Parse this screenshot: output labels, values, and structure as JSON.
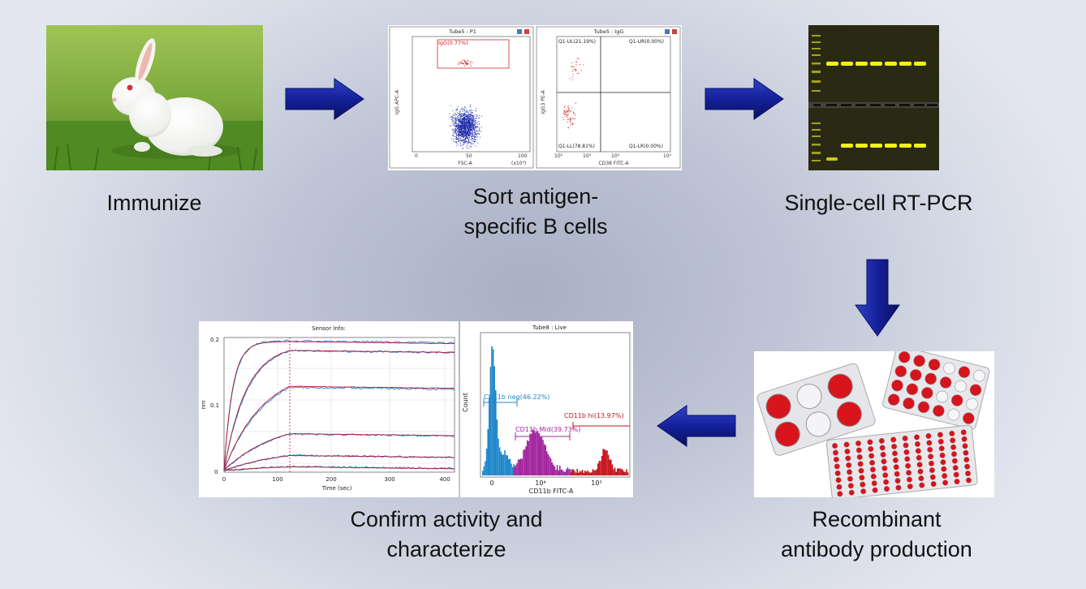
{
  "steps": {
    "immunize": "Immunize",
    "sort_line1": "Sort antigen-",
    "sort_line2": "specific B cells",
    "rtpcr": "Single-cell RT-PCR",
    "production_line1": "Recombinant",
    "production_line2": "antibody production",
    "confirm_line1": "Confirm activity and",
    "confirm_line2": "characterize"
  },
  "flow_plots": {
    "left": {
      "title": "Tube5 : P1",
      "gate_label": "IgG(0.77%)",
      "y_axis_label": "IgG APC-A",
      "x_axis_label": "FSC-A",
      "x_unit": "(x10³)",
      "x_ticks": [
        "0",
        "50",
        "100"
      ]
    },
    "right": {
      "title": "Tube5 : IgG",
      "y_axis_label": "IgG3 PE-A",
      "x_axis_label": "CD38 FITC-A",
      "q_ul": "Q1-UL(21.19%)",
      "q_ur": "Q1-UR(0.00%)",
      "q_ll": "Q1-LL(78.81%)",
      "q_lr": "Q1-LR(0.00%)",
      "x_ticks": [
        "10²",
        "10³",
        "10⁴",
        "10⁵"
      ]
    }
  },
  "sensor_plot": {
    "title": "Sensor Info:",
    "x_axis_label": "Time (sec)",
    "y_axis_label": "nm",
    "x_ticks": [
      "0",
      "100",
      "200",
      "300",
      "400"
    ],
    "y_ticks": [
      "0",
      "0.1",
      "0.2"
    ]
  },
  "histogram": {
    "title": "Tube8 : Live",
    "y_axis_label": "Count",
    "x_axis_label": "CD11b FITC-A",
    "neg_label": "CD11b neg(46.22%)",
    "mid_label": "CD11b Mid(39.73%)",
    "hi_label": "CD11b hi(13.97%)",
    "x_ticks": [
      "0",
      "10⁴",
      "10⁵"
    ],
    "colors": {
      "neg": "#1f86c8",
      "mid": "#a3249e",
      "hi": "#c8141e"
    }
  }
}
